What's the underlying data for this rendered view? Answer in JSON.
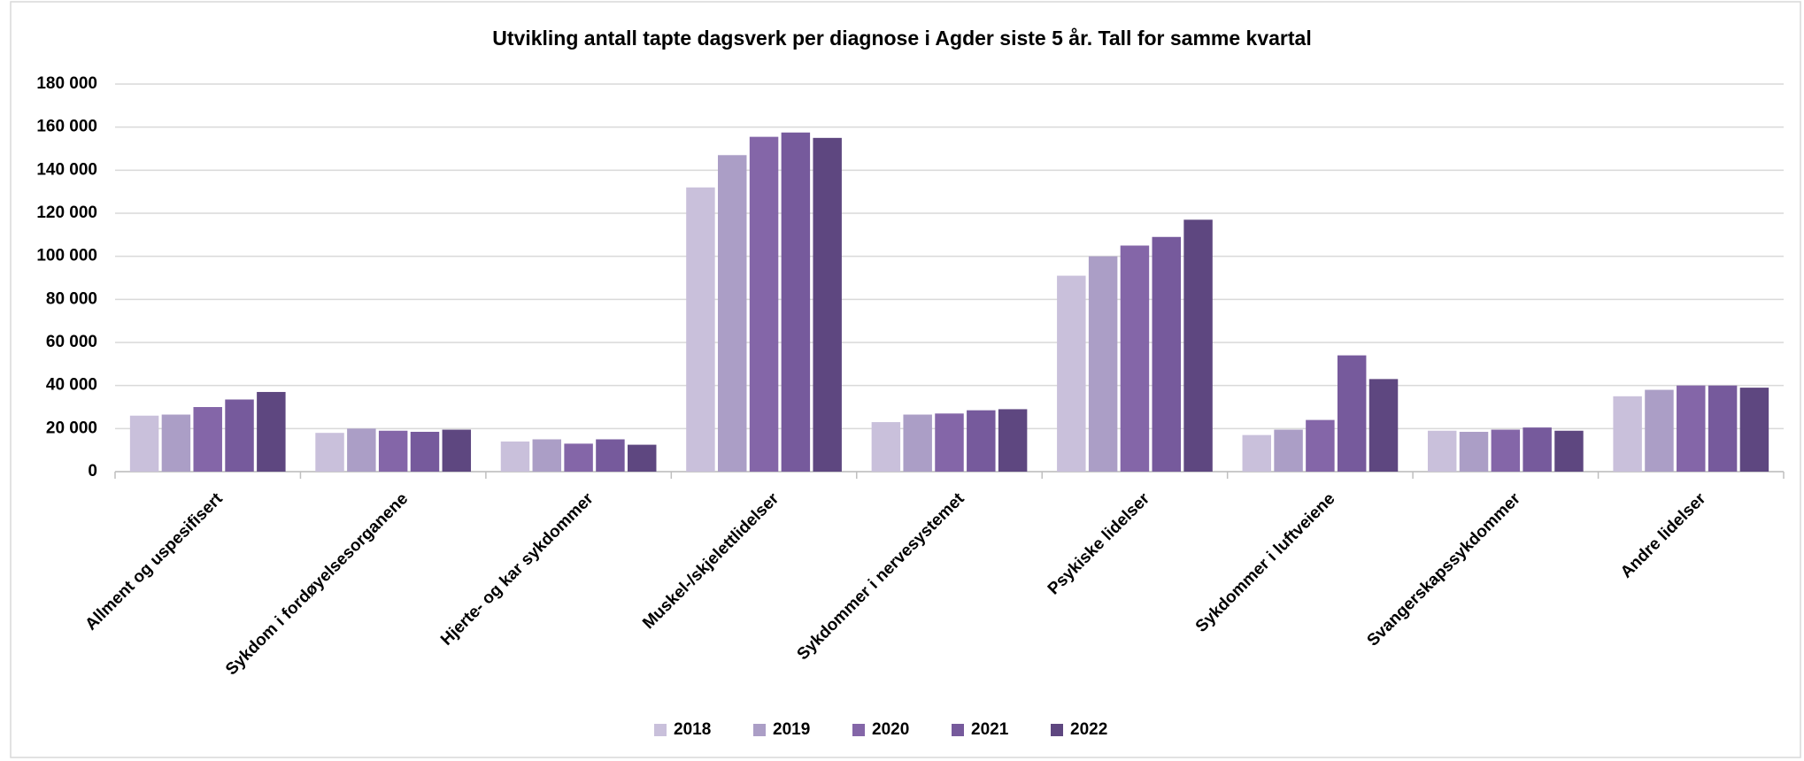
{
  "chart_data": {
    "type": "bar",
    "title": "Utvikling antall tapte dagsverk per diagnose i Agder siste 5 år. Tall for samme kvartal",
    "categories": [
      "Allment og uspesifisert",
      "Sykdom i fordøyelsesorganene",
      "Hjerte- og kar sykdommer",
      "Muskel-/skjelettlidelser",
      "Sykdommer i nervesystemet",
      "Psykiske lidelser",
      "Sykdommer i luftveiene",
      "Svangerskapssykdommer",
      "Andre lidelser"
    ],
    "series": [
      {
        "name": "2018",
        "color": "#c9c0db",
        "values": [
          26000,
          18000,
          14000,
          132000,
          23000,
          91000,
          17000,
          19000,
          35000
        ]
      },
      {
        "name": "2019",
        "color": "#ab9ec6",
        "values": [
          26500,
          20000,
          15000,
          147000,
          26500,
          100000,
          19500,
          18500,
          38000
        ]
      },
      {
        "name": "2020",
        "color": "#8466a8",
        "values": [
          30000,
          19000,
          13000,
          155500,
          27000,
          105000,
          24000,
          19500,
          40000
        ]
      },
      {
        "name": "2021",
        "color": "#765a9c",
        "values": [
          33500,
          18500,
          15000,
          157500,
          28500,
          109000,
          54000,
          20500,
          40000
        ]
      },
      {
        "name": "2022",
        "color": "#5e4780",
        "values": [
          37000,
          19500,
          12500,
          155000,
          29000,
          117000,
          43000,
          19000,
          39000
        ]
      }
    ],
    "ylim": [
      0,
      180000
    ],
    "yticks": [
      0,
      {
        "value": 20000,
        "label": "20 000"
      },
      {
        "value": 40000,
        "label": "40 000"
      },
      {
        "value": 60000,
        "label": "60 000"
      },
      {
        "value": 80000,
        "label": "80 000"
      },
      {
        "value": 100000,
        "label": "100 000"
      },
      {
        "value": 120000,
        "label": "120 000"
      },
      {
        "value": 140000,
        "label": "140 000"
      },
      {
        "value": 160000,
        "label": "160 000"
      },
      {
        "value": 180000,
        "label": "180 000"
      }
    ],
    "grid": true,
    "legend": "bottom"
  }
}
